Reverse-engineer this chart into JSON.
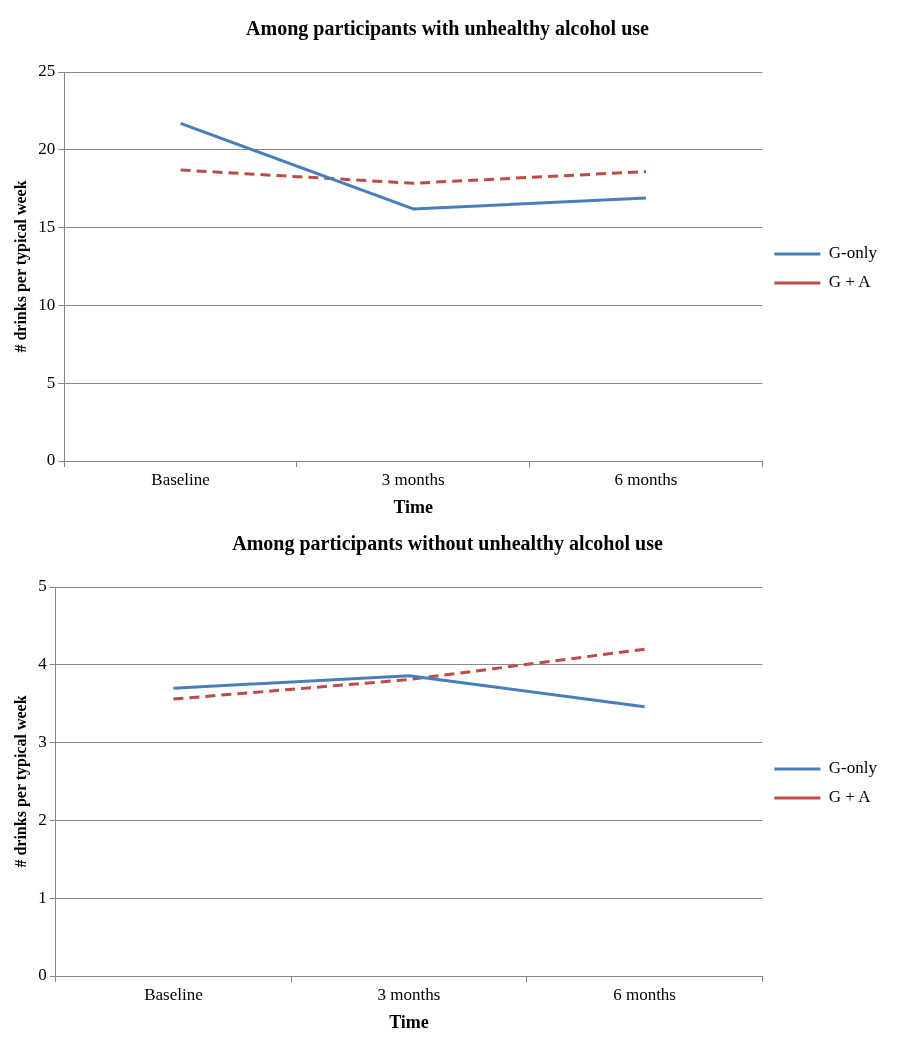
{
  "chart_data": [
    {
      "type": "line",
      "title": "Among participants with unhealthy alcohol use",
      "xlabel": "Time",
      "ylabel": "# drinks per typical week",
      "categories": [
        "Baseline",
        "3 months",
        "6 months"
      ],
      "ylim": [
        0,
        25
      ],
      "yticks": [
        0,
        5,
        10,
        15,
        20,
        25
      ],
      "grid": "y",
      "legend": "right",
      "marker": "none",
      "series": [
        {
          "name": "G-only",
          "color": "#4a7ebb",
          "line_style": "solid",
          "values": [
            21.7,
            16.2,
            16.9
          ]
        },
        {
          "name": "G + A",
          "color": "#be4b48",
          "line_style": "dashed",
          "values": [
            18.7,
            17.85,
            18.6
          ]
        }
      ]
    },
    {
      "type": "line",
      "title": "Among participants without unhealthy alcohol use",
      "xlabel": "Time",
      "ylabel": "# drinks per typical week",
      "categories": [
        "Baseline",
        "3 months",
        "6 months"
      ],
      "ylim": [
        0,
        5
      ],
      "yticks": [
        0,
        1,
        2,
        3,
        4,
        5
      ],
      "grid": "y",
      "legend": "right",
      "marker": "none",
      "series": [
        {
          "name": "G-only",
          "color": "#4a7ebb",
          "line_style": "solid",
          "values": [
            3.7,
            3.86,
            3.46
          ]
        },
        {
          "name": "G + A",
          "color": "#be4b48",
          "line_style": "dashed",
          "values": [
            3.56,
            3.81,
            4.2
          ]
        }
      ]
    }
  ]
}
